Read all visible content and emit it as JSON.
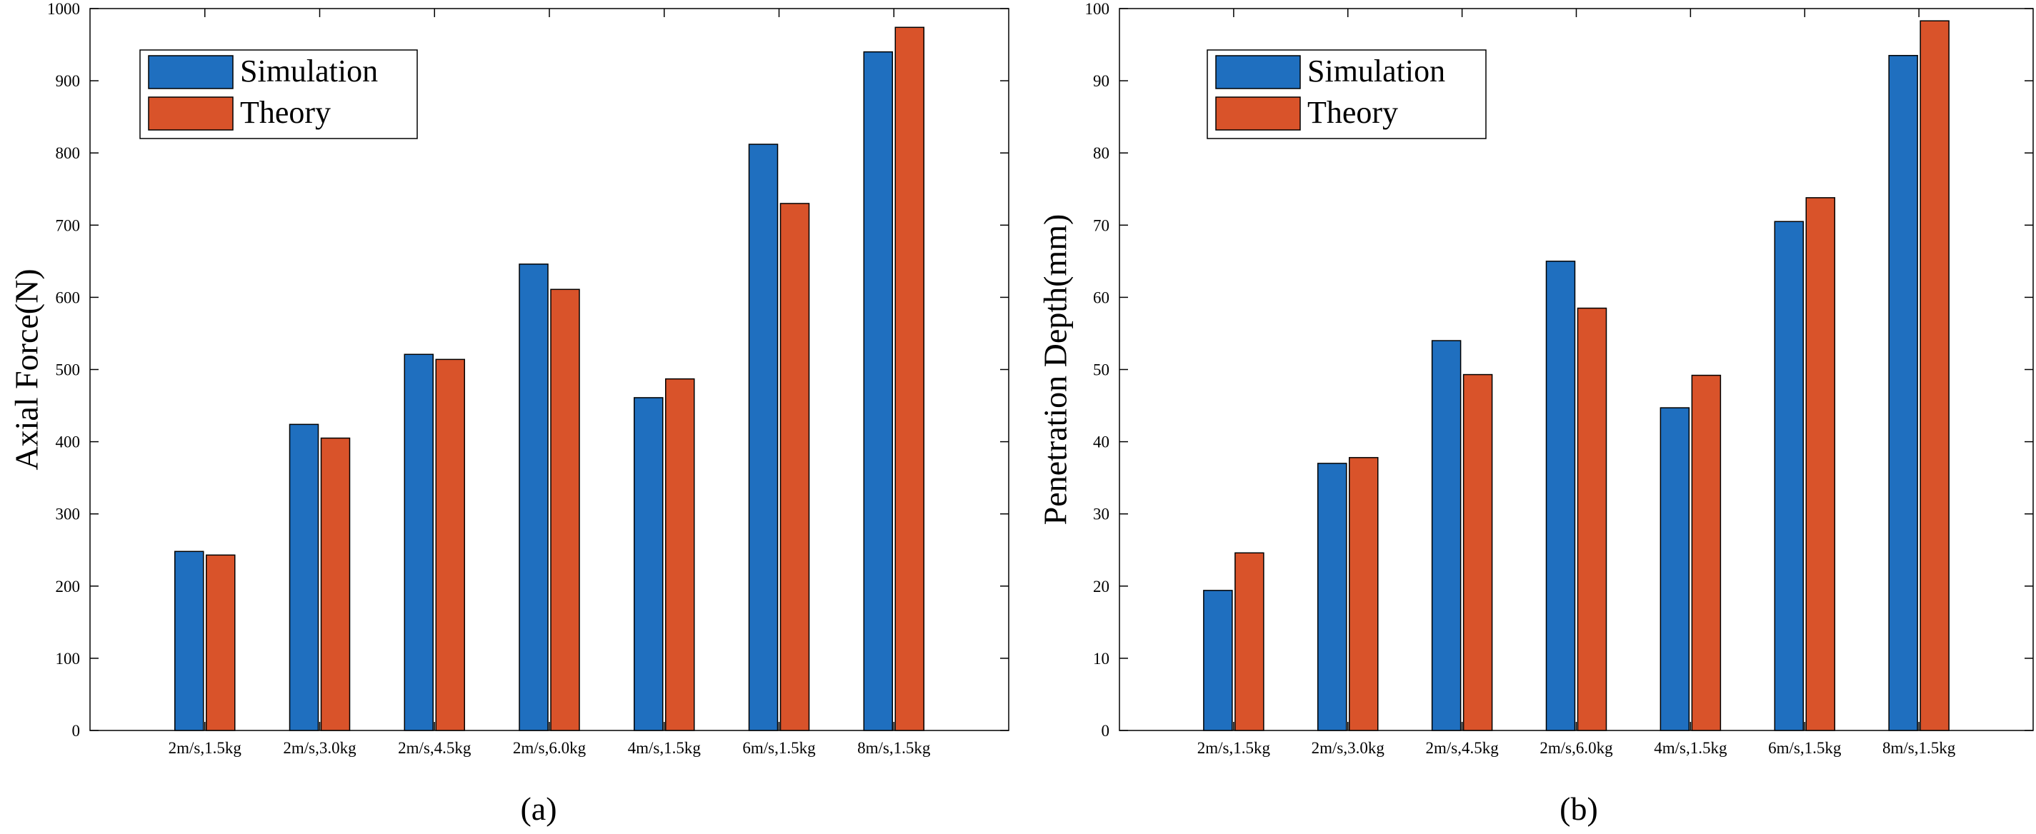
{
  "colors": {
    "simulation": "#1f6fbf",
    "theory": "#d9532a",
    "axis": "#000000"
  },
  "chart_data": [
    {
      "type": "bar",
      "caption": "(a)",
      "title": "",
      "xlabel": "",
      "ylabel": "Axial Force(N)",
      "ylim": [
        0,
        1000
      ],
      "yticks": [
        "0",
        "100",
        "200",
        "300",
        "400",
        "500",
        "600",
        "700",
        "800",
        "900",
        "1000"
      ],
      "categories": [
        "2m/s,1.5kg",
        "2m/s,3.0kg",
        "2m/s,4.5kg",
        "2m/s,6.0kg",
        "4m/s,1.5kg",
        "6m/s,1.5kg",
        "8m/s,1.5kg"
      ],
      "legend": {
        "position": "top-left"
      },
      "series": [
        {
          "name": "Simulation",
          "values": [
            248,
            424,
            521,
            646,
            461,
            812,
            940
          ]
        },
        {
          "name": "Theory",
          "values": [
            243,
            405,
            514,
            611,
            487,
            730,
            974
          ]
        }
      ]
    },
    {
      "type": "bar",
      "caption": "(b)",
      "title": "",
      "xlabel": "",
      "ylabel": "Penetration Depth(mm)",
      "ylim": [
        0,
        100
      ],
      "yticks": [
        "0",
        "10",
        "20",
        "30",
        "40",
        "50",
        "60",
        "70",
        "80",
        "90",
        "100"
      ],
      "categories": [
        "2m/s,1.5kg",
        "2m/s,3.0kg",
        "2m/s,4.5kg",
        "2m/s,6.0kg",
        "4m/s,1.5kg",
        "6m/s,1.5kg",
        "8m/s,1.5kg"
      ],
      "legend": {
        "position": "top-left"
      },
      "series": [
        {
          "name": "Simulation",
          "values": [
            19.4,
            37.0,
            54.0,
            65.0,
            44.7,
            70.5,
            93.5
          ]
        },
        {
          "name": "Theory",
          "values": [
            24.6,
            37.8,
            49.3,
            58.5,
            49.2,
            73.8,
            98.3
          ]
        }
      ]
    }
  ]
}
